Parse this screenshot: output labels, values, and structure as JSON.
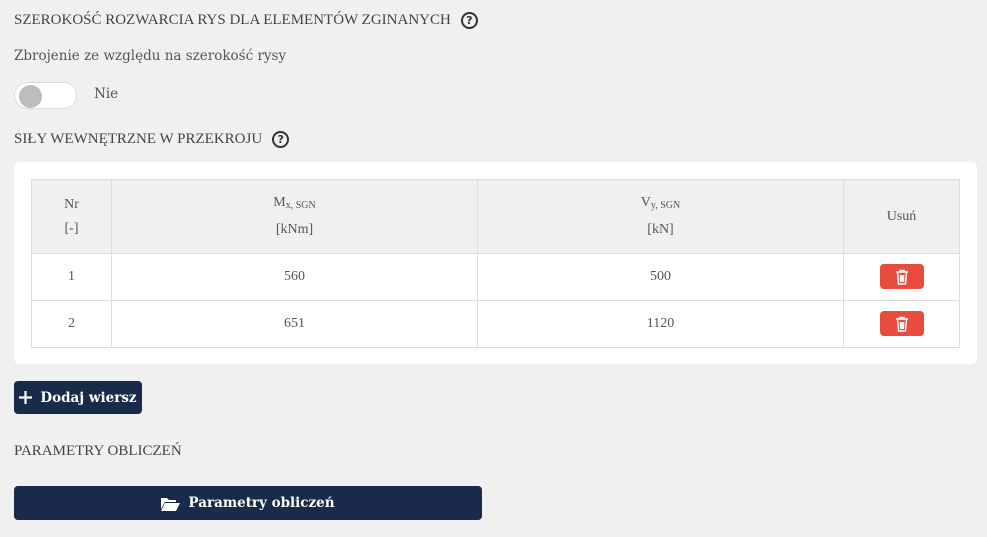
{
  "crack": {
    "title": "SZEROKOŚĆ ROZWARCIA RYS DLA ELEMENTÓW ZGINANYCH",
    "help": "?",
    "label": "Zbrojenie ze względu na szerokość rysy",
    "toggle_on": false,
    "toggle_text": "Nie"
  },
  "forces": {
    "title": "SIŁY WEWNĘTRZNE W PRZEKROJU",
    "help": "?",
    "headers": {
      "nr": "Nr",
      "nr_unit": "[-]",
      "m": "M",
      "m_sub": "x, SGN",
      "m_unit": "[kNm]",
      "v": "V",
      "v_sub": "y, SGN",
      "v_unit": "[kN]",
      "del": "Usuń"
    },
    "rows": [
      {
        "nr": "1",
        "m": "560",
        "v": "500"
      },
      {
        "nr": "2",
        "m": "651",
        "v": "1120"
      }
    ],
    "add_label": "Dodaj wiersz"
  },
  "params": {
    "title": "PARAMETRY OBLICZEŃ",
    "button_label": "Parametry obliczeń"
  },
  "colors": {
    "navy": "#192a4a",
    "danger": "#e74c3c",
    "background": "#f0f0f0"
  }
}
